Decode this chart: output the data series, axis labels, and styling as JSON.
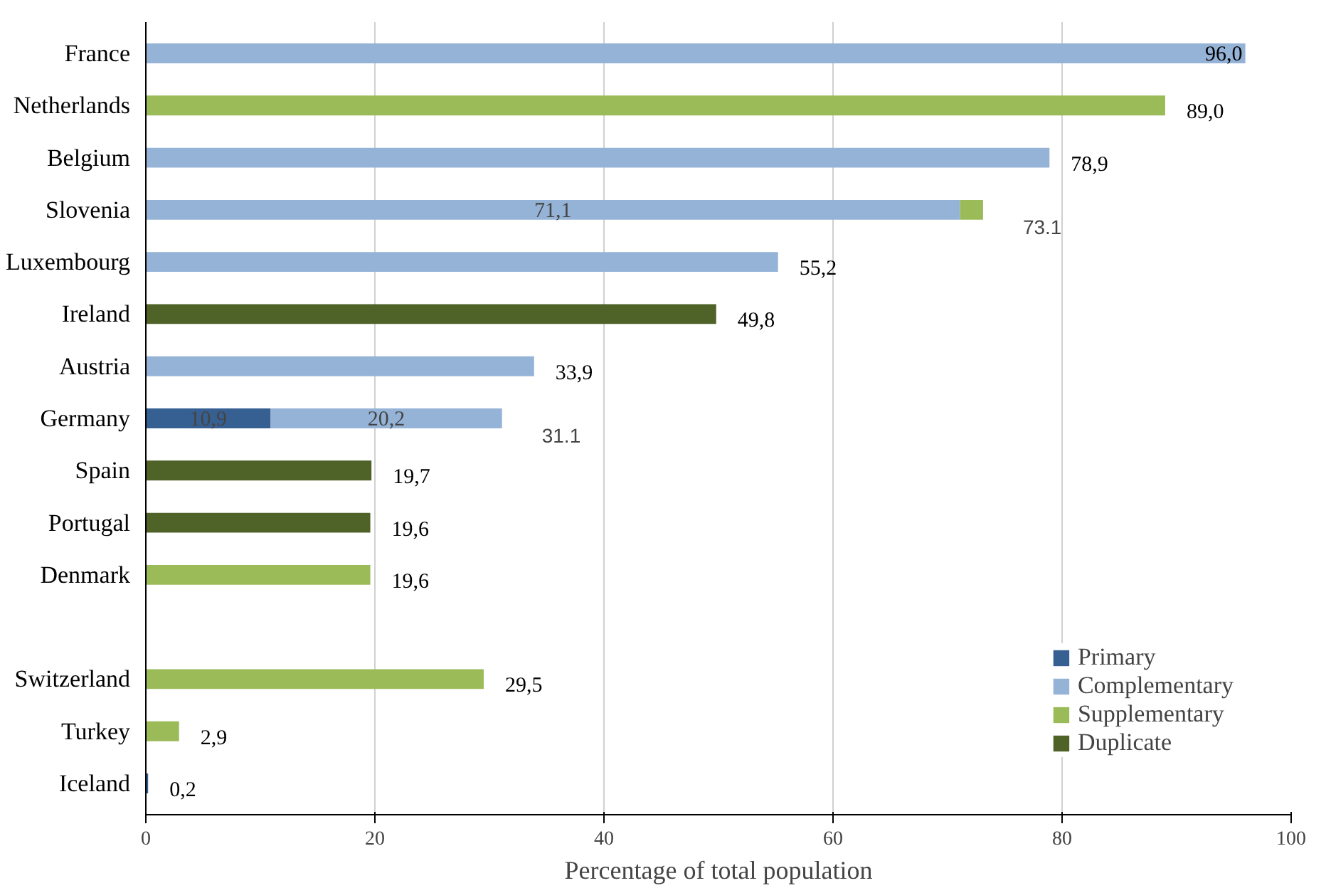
{
  "chart_data": {
    "type": "bar",
    "orientation": "horizontal",
    "stacked": true,
    "xlabel": "Percentage of total population",
    "categories": [
      "France",
      "Netherlands",
      "Belgium",
      "Slovenia",
      "Luxembourg",
      "Ireland",
      "Austria",
      "Germany",
      "Spain",
      "Portugal",
      "Denmark",
      null,
      "Switzerland",
      "Turkey",
      "Iceland"
    ],
    "series": [
      {
        "name": "Primary",
        "color": "#376092",
        "values": [
          null,
          null,
          null,
          null,
          null,
          null,
          null,
          10.9,
          null,
          null,
          null,
          null,
          null,
          null,
          0.2
        ],
        "value_labels": [
          null,
          null,
          null,
          null,
          null,
          null,
          null,
          "10,9",
          null,
          null,
          null,
          null,
          null,
          null,
          "0,2"
        ]
      },
      {
        "name": "Complementary",
        "color": "#95b3d7",
        "values": [
          96.0,
          null,
          78.9,
          71.1,
          55.2,
          null,
          33.9,
          20.2,
          null,
          null,
          null,
          null,
          null,
          null,
          null
        ],
        "value_labels": [
          "96,0",
          null,
          "78,9",
          "71,1",
          "55,2",
          null,
          "33,9",
          "20,2",
          null,
          null,
          null,
          null,
          null,
          null,
          null
        ]
      },
      {
        "name": "Supplementary",
        "color": "#9bbb59",
        "values": [
          null,
          89.0,
          null,
          2.0,
          null,
          null,
          null,
          null,
          null,
          null,
          19.6,
          null,
          29.5,
          2.9,
          null
        ],
        "value_labels": [
          null,
          "89,0",
          null,
          null,
          null,
          null,
          null,
          null,
          null,
          null,
          "19,6",
          null,
          "29,5",
          "2,9",
          null
        ]
      },
      {
        "name": "Duplicate",
        "color": "#4f6228",
        "values": [
          null,
          null,
          null,
          null,
          null,
          49.8,
          null,
          null,
          19.7,
          19.6,
          null,
          null,
          null,
          null,
          null
        ],
        "value_labels": [
          null,
          null,
          null,
          null,
          null,
          "49,8",
          null,
          null,
          "19,7",
          "19,6",
          null,
          null,
          null,
          null,
          null
        ]
      }
    ],
    "totals": [
      null,
      null,
      null,
      "73.1",
      null,
      null,
      null,
      "31.1",
      null,
      null,
      null,
      null,
      null,
      null,
      null
    ],
    "xlim": [
      0,
      100
    ],
    "xticks": [
      0,
      20,
      40,
      60,
      80,
      100
    ],
    "grid": "x",
    "legend": "bottom right"
  }
}
